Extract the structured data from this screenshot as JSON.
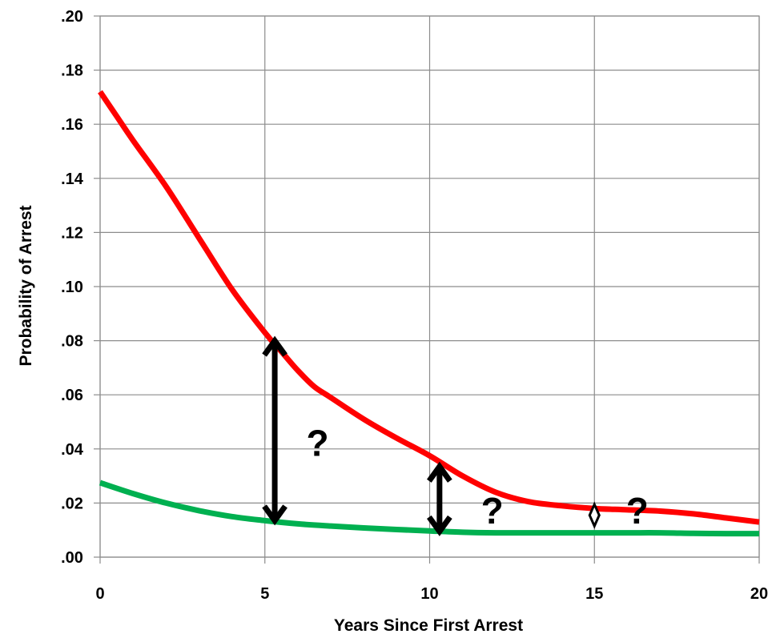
{
  "chart_data": {
    "type": "line",
    "title": "",
    "xlabel": "Years Since First Arrest",
    "ylabel": "Probability of Arrest",
    "xlim": [
      0,
      20
    ],
    "ylim": [
      0,
      0.2
    ],
    "x_ticks": [
      {
        "value": 0,
        "label": "0"
      },
      {
        "value": 5,
        "label": "5"
      },
      {
        "value": 10,
        "label": "10"
      },
      {
        "value": 15,
        "label": "15"
      },
      {
        "value": 20,
        "label": "20"
      }
    ],
    "y_ticks": [
      {
        "value": 0.0,
        "label": ".00"
      },
      {
        "value": 0.02,
        "label": ".02"
      },
      {
        "value": 0.04,
        "label": ".04"
      },
      {
        "value": 0.06,
        "label": ".06"
      },
      {
        "value": 0.08,
        "label": ".08"
      },
      {
        "value": 0.1,
        "label": ".10"
      },
      {
        "value": 0.12,
        "label": ".12"
      },
      {
        "value": 0.14,
        "label": ".14"
      },
      {
        "value": 0.16,
        "label": ".16"
      },
      {
        "value": 0.18,
        "label": ".18"
      },
      {
        "value": 0.2,
        "label": ".20"
      }
    ],
    "grid": true,
    "legend": false,
    "series": [
      {
        "color": "#ff0000",
        "points": [
          [
            0,
            0.172
          ],
          [
            0.5,
            0.163
          ],
          [
            1,
            0.154
          ],
          [
            2,
            0.137
          ],
          [
            3,
            0.118
          ],
          [
            4,
            0.099
          ],
          [
            5,
            0.083
          ],
          [
            5.5,
            0.076
          ],
          [
            6,
            0.069
          ],
          [
            6.5,
            0.063
          ],
          [
            7,
            0.059
          ],
          [
            8,
            0.051
          ],
          [
            9,
            0.044
          ],
          [
            10,
            0.0375
          ],
          [
            11,
            0.03
          ],
          [
            12,
            0.024
          ],
          [
            13,
            0.0205
          ],
          [
            14,
            0.019
          ],
          [
            15,
            0.018
          ],
          [
            16,
            0.0175
          ],
          [
            17,
            0.017
          ],
          [
            18,
            0.016
          ],
          [
            19,
            0.0145
          ],
          [
            20,
            0.013
          ]
        ]
      },
      {
        "color": "#00b050",
        "points": [
          [
            0,
            0.0275
          ],
          [
            1,
            0.0235
          ],
          [
            2,
            0.02
          ],
          [
            3,
            0.0172
          ],
          [
            4,
            0.015
          ],
          [
            5,
            0.0135
          ],
          [
            6,
            0.0123
          ],
          [
            7,
            0.0115
          ],
          [
            8,
            0.0108
          ],
          [
            9,
            0.0102
          ],
          [
            10,
            0.0097
          ],
          [
            11,
            0.0092
          ],
          [
            12,
            0.009
          ],
          [
            13,
            0.009
          ],
          [
            14,
            0.009
          ],
          [
            15,
            0.009
          ],
          [
            16,
            0.009
          ],
          [
            17,
            0.009
          ],
          [
            18,
            0.0088
          ],
          [
            19,
            0.0087
          ],
          [
            20,
            0.0087
          ]
        ]
      }
    ],
    "annotations": [
      {
        "type": "double-arrow",
        "x": 5.3,
        "y_from": 0.0135,
        "y_to": 0.08
      },
      {
        "type": "double-arrow",
        "x": 10.3,
        "y_from": 0.0095,
        "y_to": 0.0335
      },
      {
        "type": "double-arrow",
        "x": 15,
        "y_from": 0.0115,
        "y_to": 0.0195
      },
      {
        "type": "text",
        "text": "?",
        "x": 6.6,
        "y": 0.0375
      },
      {
        "type": "text",
        "text": "?",
        "x": 11.9,
        "y": 0.0125
      },
      {
        "type": "text",
        "text": "?",
        "x": 16.3,
        "y": 0.0125
      }
    ]
  }
}
